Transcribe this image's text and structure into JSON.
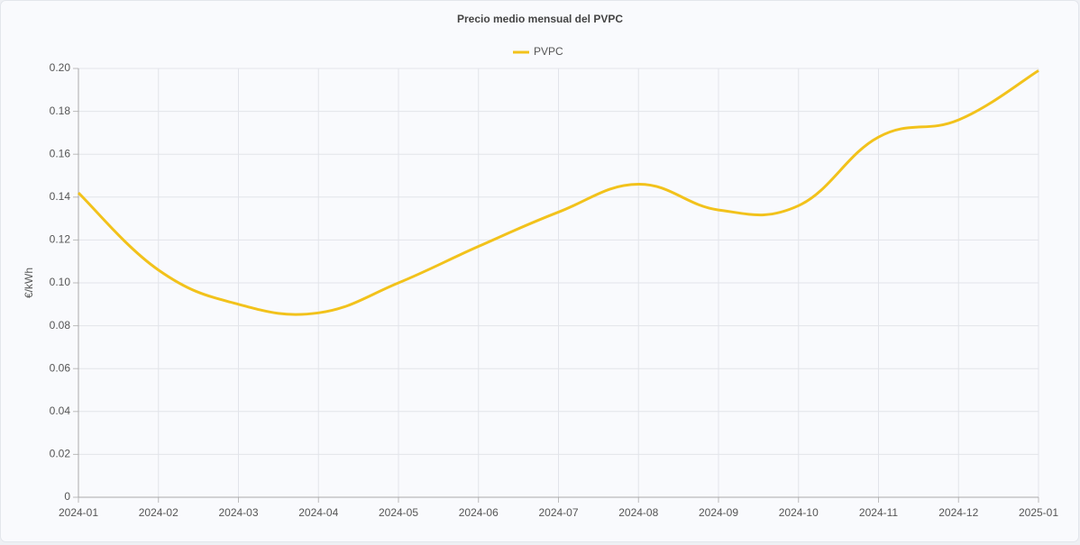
{
  "chart_data": {
    "type": "line",
    "title": "Precio medio mensual del PVPC",
    "y_label": "€/kWh",
    "categories": [
      "2024-01",
      "2024-02",
      "2024-03",
      "2024-04",
      "2024-05",
      "2024-06",
      "2024-07",
      "2024-08",
      "2024-09",
      "2024-10",
      "2024-11",
      "2024-12",
      "2025-01"
    ],
    "series": [
      {
        "name": "PVPC",
        "color": "#f2c21b",
        "values": [
          0.142,
          0.106,
          0.09,
          0.086,
          0.1,
          0.117,
          0.133,
          0.146,
          0.134,
          0.136,
          0.168,
          0.176,
          0.199
        ]
      }
    ],
    "ylim": [
      0,
      0.2
    ],
    "yticks": [
      0,
      0.02,
      0.04,
      0.06,
      0.08,
      {
        "value": 0.1,
        "label": "0.10"
      },
      0.12,
      0.14,
      0.16,
      0.18,
      {
        "value": 0.2,
        "label": "0.20"
      }
    ],
    "grid": true,
    "legend": "top"
  }
}
